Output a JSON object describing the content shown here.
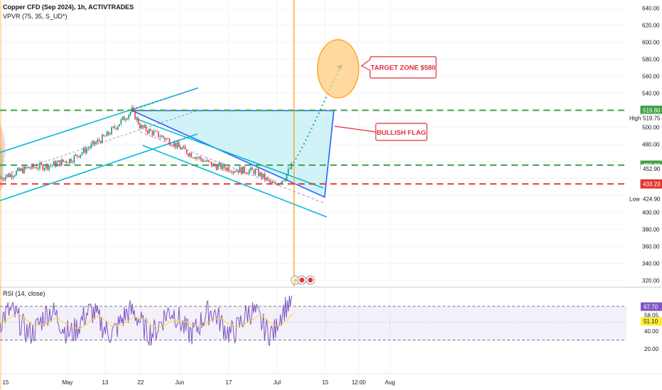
{
  "header": {
    "symbol": "Copper CFD (Sep 2024), 1h, ACTIVTRADES",
    "indicator": "VPVR (75, 35, S_UD*)",
    "rsi": "RSI (14, close)"
  },
  "annotations": {
    "target": "TARGET  ZONE $580",
    "flag": "BULLISH FLAG"
  },
  "price_axis": [
    "640.00",
    "620.00",
    "600.00",
    "580.00",
    "560.00",
    "540.00",
    "500.00",
    "480.00",
    "400.00",
    "380.00",
    "360.00",
    "340.00",
    "320.00"
  ],
  "price_tags": [
    {
      "text": "519.80",
      "bg": "#43a047",
      "fg": "#ffffff",
      "price": 519.8
    },
    {
      "text": "519.75",
      "bg": "#ffffff",
      "fg": "#131722",
      "price": 519.75,
      "side": "High"
    },
    {
      "text": "455.30",
      "bg": "#43a047",
      "fg": "#ffffff",
      "price": 455.3
    },
    {
      "text": "452.90",
      "bg": "#ffffff",
      "fg": "#131722",
      "price": 452.9
    },
    {
      "text": "433.23",
      "bg": "#e53935",
      "fg": "#ffffff",
      "price": 433.23
    },
    {
      "text": "424.90",
      "bg": "#ffffff",
      "fg": "#131722",
      "price": 424.9,
      "side": "Low"
    }
  ],
  "rsi_axis": [
    "68.07",
    "58.05",
    "40.00",
    "20.00"
  ],
  "rsi_tags": [
    {
      "text": "67.70",
      "bg": "#7e57c2",
      "fg": "#ffffff",
      "value": 67.7
    },
    {
      "text": "51.10",
      "bg": "#ffeb3b",
      "fg": "#131722",
      "value": 51.1
    }
  ],
  "time_axis": [
    "15",
    "May",
    "13",
    "22",
    "Jun",
    "17",
    "Jul",
    "15",
    "12:00",
    "Aug"
  ],
  "colors": {
    "candle_up": "#089981",
    "candle_down": "#f23645",
    "channel": "#00bcd4",
    "flag_fill": "#b2ebf2",
    "flag_border": "#2962ff",
    "green_dash": "#43a047",
    "red_dash": "#e53935",
    "rsi_line": "#7e57c2",
    "rsi_ma": "#fdd835",
    "target": "#ffb74d",
    "vline": "#ff9800"
  },
  "chart_data": {
    "type": "candlestick",
    "title": "Copper CFD (Sep 2024), 1h, ACTIVTRADES",
    "price_range": [
      315,
      650
    ],
    "levels": {
      "flag_top": 519.8,
      "breakout": 455.3,
      "support": 433.23,
      "high": 519.75,
      "low": 424.9,
      "target": 580
    },
    "price_path": [
      [
        "Apr 15",
        440
      ],
      [
        "Apr 22",
        452
      ],
      [
        "Apr 29",
        455
      ],
      [
        "May 6",
        462
      ],
      [
        "May 13",
        490
      ],
      [
        "May 20",
        519.75
      ],
      [
        "May 22",
        500
      ],
      [
        "May 27",
        488
      ],
      [
        "Jun 3",
        470
      ],
      [
        "Jun 10",
        455
      ],
      [
        "Jun 17",
        450
      ],
      [
        "Jun 24",
        448
      ],
      [
        "Jul 1",
        432
      ],
      [
        "Jul 4",
        440
      ],
      [
        "Jul 5",
        456
      ]
    ],
    "rsi": {
      "name": "RSI (14, close)",
      "current": 67.7,
      "ma": 51.1,
      "upper": 68.07,
      "lower": 30,
      "range": [
        15,
        80
      ]
    }
  }
}
